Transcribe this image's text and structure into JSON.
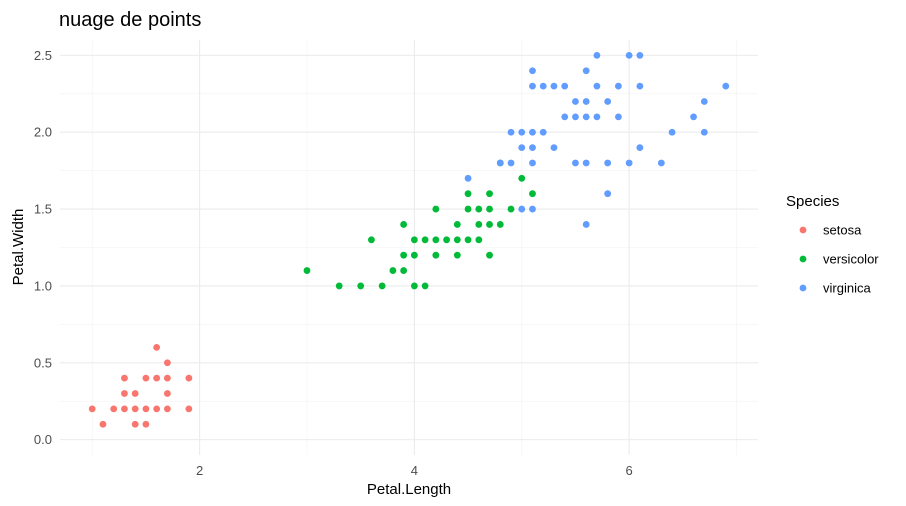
{
  "chart_data": {
    "type": "scatter",
    "title": "nuage de points",
    "xlabel": "Petal.Length",
    "ylabel": "Petal.Width",
    "xlim": [
      0.7,
      7.2
    ],
    "ylim": [
      -0.1,
      2.6
    ],
    "x_ticks": [
      2,
      4,
      6
    ],
    "x_tick_labels": [
      "2",
      "4",
      "6"
    ],
    "y_ticks": [
      0.0,
      0.5,
      1.0,
      1.5,
      2.0,
      2.5
    ],
    "y_tick_labels": [
      "0.0",
      "0.5",
      "1.0",
      "1.5",
      "2.0",
      "2.5"
    ],
    "grid": true,
    "legend": {
      "title": "Species",
      "position": "right"
    },
    "series": [
      {
        "name": "setosa",
        "color": "#F8766D",
        "points": [
          [
            1.0,
            0.2
          ],
          [
            1.1,
            0.1
          ],
          [
            1.2,
            0.2
          ],
          [
            1.3,
            0.2
          ],
          [
            1.3,
            0.3
          ],
          [
            1.3,
            0.4
          ],
          [
            1.4,
            0.1
          ],
          [
            1.4,
            0.2
          ],
          [
            1.4,
            0.3
          ],
          [
            1.5,
            0.1
          ],
          [
            1.5,
            0.2
          ],
          [
            1.5,
            0.4
          ],
          [
            1.6,
            0.2
          ],
          [
            1.6,
            0.4
          ],
          [
            1.6,
            0.6
          ],
          [
            1.7,
            0.2
          ],
          [
            1.7,
            0.3
          ],
          [
            1.7,
            0.4
          ],
          [
            1.7,
            0.5
          ],
          [
            1.9,
            0.2
          ],
          [
            1.9,
            0.4
          ]
        ]
      },
      {
        "name": "versicolor",
        "color": "#00BA38",
        "points": [
          [
            3.0,
            1.1
          ],
          [
            3.3,
            1.0
          ],
          [
            3.5,
            1.0
          ],
          [
            3.6,
            1.3
          ],
          [
            3.7,
            1.0
          ],
          [
            3.8,
            1.1
          ],
          [
            3.9,
            1.1
          ],
          [
            3.9,
            1.2
          ],
          [
            3.9,
            1.4
          ],
          [
            4.0,
            1.0
          ],
          [
            4.0,
            1.2
          ],
          [
            4.0,
            1.3
          ],
          [
            4.1,
            1.0
          ],
          [
            4.1,
            1.3
          ],
          [
            4.2,
            1.2
          ],
          [
            4.2,
            1.3
          ],
          [
            4.2,
            1.5
          ],
          [
            4.3,
            1.3
          ],
          [
            4.4,
            1.2
          ],
          [
            4.4,
            1.3
          ],
          [
            4.4,
            1.4
          ],
          [
            4.5,
            1.3
          ],
          [
            4.5,
            1.5
          ],
          [
            4.5,
            1.6
          ],
          [
            4.6,
            1.3
          ],
          [
            4.6,
            1.4
          ],
          [
            4.6,
            1.5
          ],
          [
            4.7,
            1.2
          ],
          [
            4.7,
            1.4
          ],
          [
            4.7,
            1.5
          ],
          [
            4.7,
            1.6
          ],
          [
            4.8,
            1.4
          ],
          [
            4.8,
            1.8
          ],
          [
            4.9,
            1.5
          ],
          [
            5.0,
            1.7
          ],
          [
            5.1,
            1.6
          ]
        ]
      },
      {
        "name": "virginica",
        "color": "#619CFF",
        "points": [
          [
            4.5,
            1.7
          ],
          [
            4.8,
            1.8
          ],
          [
            4.9,
            1.8
          ],
          [
            4.9,
            2.0
          ],
          [
            5.0,
            1.5
          ],
          [
            5.0,
            1.9
          ],
          [
            5.0,
            2.0
          ],
          [
            5.1,
            1.5
          ],
          [
            5.1,
            1.8
          ],
          [
            5.1,
            1.9
          ],
          [
            5.1,
            2.0
          ],
          [
            5.1,
            2.3
          ],
          [
            5.1,
            2.4
          ],
          [
            5.2,
            2.0
          ],
          [
            5.2,
            2.3
          ],
          [
            5.3,
            1.9
          ],
          [
            5.3,
            2.3
          ],
          [
            5.4,
            2.1
          ],
          [
            5.4,
            2.3
          ],
          [
            5.5,
            1.8
          ],
          [
            5.5,
            2.1
          ],
          [
            5.5,
            2.2
          ],
          [
            5.6,
            1.4
          ],
          [
            5.6,
            1.8
          ],
          [
            5.6,
            2.1
          ],
          [
            5.6,
            2.2
          ],
          [
            5.6,
            2.4
          ],
          [
            5.7,
            2.1
          ],
          [
            5.7,
            2.3
          ],
          [
            5.7,
            2.5
          ],
          [
            5.8,
            1.6
          ],
          [
            5.8,
            1.8
          ],
          [
            5.8,
            2.2
          ],
          [
            5.9,
            2.1
          ],
          [
            5.9,
            2.3
          ],
          [
            6.0,
            1.8
          ],
          [
            6.0,
            2.5
          ],
          [
            6.1,
            1.9
          ],
          [
            6.1,
            2.3
          ],
          [
            6.1,
            2.5
          ],
          [
            6.3,
            1.8
          ],
          [
            6.4,
            2.0
          ],
          [
            6.6,
            2.1
          ],
          [
            6.7,
            2.0
          ],
          [
            6.7,
            2.2
          ],
          [
            6.9,
            2.3
          ]
        ]
      }
    ]
  }
}
